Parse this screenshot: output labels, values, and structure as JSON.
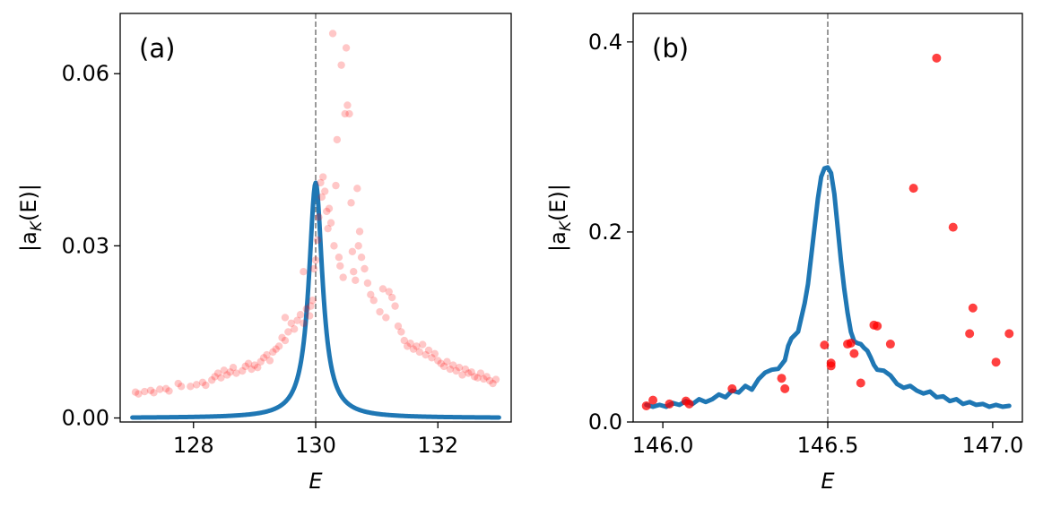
{
  "colors": {
    "curve": "#1f77b4",
    "points": "#ff0000",
    "vline": "#808080",
    "axes": "#000000"
  },
  "chart_data": [
    {
      "type": "scatter",
      "panel_label": "(a)",
      "xlabel": "E",
      "ylabel": "|a_K(E)|",
      "ylabel_main": "|a",
      "ylabel_sub": "K",
      "ylabel_tail": "(E)|",
      "xlim": [
        126.8,
        133.2
      ],
      "ylim": [
        -0.0007,
        0.0705
      ],
      "xticks": [
        128,
        130,
        132
      ],
      "xtick_labels": [
        "128",
        "130",
        "132"
      ],
      "yticks": [
        0.0,
        0.03,
        0.06
      ],
      "ytick_labels": [
        "0.00",
        "0.03",
        "0.06"
      ],
      "vline_x": 130,
      "point_alpha": 0.22,
      "series": [
        {
          "kind": "line",
          "lorentz": {
            "center": 130.0,
            "gamma": 0.135,
            "scale": 0.041,
            "x_range": [
              127.0,
              133.0
            ]
          }
        },
        {
          "kind": "scatter",
          "points": [
            [
              127.05,
              0.0045
            ],
            [
              127.1,
              0.0042
            ],
            [
              127.2,
              0.0046
            ],
            [
              127.3,
              0.0048
            ],
            [
              127.35,
              0.0044
            ],
            [
              127.45,
              0.005
            ],
            [
              127.55,
              0.0051
            ],
            [
              127.6,
              0.0047
            ],
            [
              127.75,
              0.006
            ],
            [
              127.8,
              0.0055
            ],
            [
              127.95,
              0.0055
            ],
            [
              128.05,
              0.0058
            ],
            [
              128.15,
              0.0062
            ],
            [
              128.2,
              0.0057
            ],
            [
              128.3,
              0.0066
            ],
            [
              128.35,
              0.0072
            ],
            [
              128.4,
              0.0078
            ],
            [
              128.45,
              0.007
            ],
            [
              128.5,
              0.0083
            ],
            [
              128.55,
              0.0075
            ],
            [
              128.6,
              0.008
            ],
            [
              128.65,
              0.0088
            ],
            [
              128.7,
              0.0078
            ],
            [
              128.8,
              0.0082
            ],
            [
              128.85,
              0.009
            ],
            [
              128.9,
              0.0095
            ],
            [
              128.95,
              0.0085
            ],
            [
              129.0,
              0.0092
            ],
            [
              129.05,
              0.0088
            ],
            [
              129.1,
              0.0098
            ],
            [
              129.15,
              0.0105
            ],
            [
              129.2,
              0.011
            ],
            [
              129.25,
              0.01
            ],
            [
              129.3,
              0.0115
            ],
            [
              129.35,
              0.012
            ],
            [
              129.4,
              0.0125
            ],
            [
              129.45,
              0.014
            ],
            [
              129.5,
              0.0135
            ],
            [
              129.5,
              0.0175
            ],
            [
              129.55,
              0.015
            ],
            [
              129.6,
              0.0165
            ],
            [
              129.65,
              0.0155
            ],
            [
              129.7,
              0.017
            ],
            [
              129.75,
              0.018
            ],
            [
              129.8,
              0.0165
            ],
            [
              129.8,
              0.0255
            ],
            [
              129.85,
              0.019
            ],
            [
              129.9,
              0.0178
            ],
            [
              129.92,
              0.0195
            ],
            [
              129.95,
              0.0205
            ],
            [
              129.97,
              0.026
            ],
            [
              130.0,
              0.0275
            ],
            [
              130.03,
              0.031
            ],
            [
              130.05,
              0.035
            ],
            [
              130.08,
              0.041
            ],
            [
              130.1,
              0.0385
            ],
            [
              130.12,
              0.042
            ],
            [
              130.15,
              0.0395
            ],
            [
              130.18,
              0.036
            ],
            [
              130.2,
              0.033
            ],
            [
              130.22,
              0.0365
            ],
            [
              130.25,
              0.034
            ],
            [
              130.28,
              0.067
            ],
            [
              130.3,
              0.03
            ],
            [
              130.33,
              0.0405
            ],
            [
              130.35,
              0.0485
            ],
            [
              130.38,
              0.028
            ],
            [
              130.4,
              0.0265
            ],
            [
              130.42,
              0.0615
            ],
            [
              130.45,
              0.0245
            ],
            [
              130.48,
              0.053
            ],
            [
              130.5,
              0.0645
            ],
            [
              130.52,
              0.0545
            ],
            [
              130.55,
              0.053
            ],
            [
              130.58,
              0.0375
            ],
            [
              130.6,
              0.029
            ],
            [
              130.62,
              0.0255
            ],
            [
              130.65,
              0.024
            ],
            [
              130.68,
              0.04
            ],
            [
              130.7,
              0.03
            ],
            [
              130.72,
              0.0325
            ],
            [
              130.75,
              0.028
            ],
            [
              130.8,
              0.026
            ],
            [
              130.85,
              0.0235
            ],
            [
              130.9,
              0.0215
            ],
            [
              130.95,
              0.0205
            ],
            [
              131.05,
              0.0185
            ],
            [
              131.1,
              0.0225
            ],
            [
              131.15,
              0.0175
            ],
            [
              131.2,
              0.022
            ],
            [
              131.25,
              0.021
            ],
            [
              131.3,
              0.0195
            ],
            [
              131.35,
              0.016
            ],
            [
              131.4,
              0.015
            ],
            [
              131.45,
              0.0135
            ],
            [
              131.5,
              0.0125
            ],
            [
              131.55,
              0.013
            ],
            [
              131.6,
              0.012
            ],
            [
              131.65,
              0.0125
            ],
            [
              131.7,
              0.0115
            ],
            [
              131.75,
              0.0128
            ],
            [
              131.8,
              0.011
            ],
            [
              131.85,
              0.0118
            ],
            [
              131.9,
              0.0105
            ],
            [
              131.95,
              0.0112
            ],
            [
              132.0,
              0.01
            ],
            [
              132.05,
              0.0095
            ],
            [
              132.1,
              0.009
            ],
            [
              132.15,
              0.0098
            ],
            [
              132.2,
              0.0085
            ],
            [
              132.25,
              0.0092
            ],
            [
              132.3,
              0.0082
            ],
            [
              132.35,
              0.0088
            ],
            [
              132.4,
              0.0075
            ],
            [
              132.45,
              0.0085
            ],
            [
              132.5,
              0.0078
            ],
            [
              132.55,
              0.008
            ],
            [
              132.6,
              0.0072
            ],
            [
              132.65,
              0.007
            ],
            [
              132.7,
              0.0078
            ],
            [
              132.75,
              0.0068
            ],
            [
              132.8,
              0.0072
            ],
            [
              132.85,
              0.0065
            ],
            [
              132.9,
              0.006
            ],
            [
              132.95,
              0.0067
            ]
          ]
        }
      ]
    },
    {
      "type": "scatter",
      "panel_label": "(b)",
      "xlabel": "E",
      "ylabel": "|a_K(E)|",
      "ylabel_main": "|a",
      "ylabel_sub": "K",
      "ylabel_tail": "(E)|",
      "xlim": [
        145.91,
        147.09
      ],
      "ylim": [
        0.0,
        0.43
      ],
      "xticks": [
        146.0,
        146.5,
        147.0
      ],
      "xtick_labels": [
        "146.0",
        "146.5",
        "147.0"
      ],
      "yticks": [
        0.0,
        0.2,
        0.4
      ],
      "ytick_labels": [
        "0.0",
        "0.2",
        "0.4"
      ],
      "vline_x": 146.5,
      "point_alpha": 0.75,
      "series": [
        {
          "kind": "line",
          "points": [
            [
              145.95,
              0.018
            ],
            [
              145.97,
              0.016
            ],
            [
              145.99,
              0.018
            ],
            [
              146.01,
              0.016
            ],
            [
              146.03,
              0.02
            ],
            [
              146.05,
              0.018
            ],
            [
              146.07,
              0.022
            ],
            [
              146.09,
              0.019
            ],
            [
              146.11,
              0.024
            ],
            [
              146.13,
              0.021
            ],
            [
              146.15,
              0.024
            ],
            [
              146.17,
              0.029
            ],
            [
              146.19,
              0.026
            ],
            [
              146.21,
              0.033
            ],
            [
              146.23,
              0.031
            ],
            [
              146.25,
              0.038
            ],
            [
              146.27,
              0.034
            ],
            [
              146.29,
              0.045
            ],
            [
              146.31,
              0.052
            ],
            [
              146.33,
              0.055
            ],
            [
              146.35,
              0.056
            ],
            [
              146.37,
              0.065
            ],
            [
              146.38,
              0.08
            ],
            [
              146.39,
              0.088
            ],
            [
              146.41,
              0.095
            ],
            [
              146.42,
              0.11
            ],
            [
              146.43,
              0.125
            ],
            [
              146.44,
              0.145
            ],
            [
              146.45,
              0.175
            ],
            [
              146.46,
              0.205
            ],
            [
              146.47,
              0.235
            ],
            [
              146.48,
              0.258
            ],
            [
              146.49,
              0.267
            ],
            [
              146.5,
              0.268
            ],
            [
              146.51,
              0.262
            ],
            [
              146.52,
              0.24
            ],
            [
              146.53,
              0.205
            ],
            [
              146.54,
              0.17
            ],
            [
              146.55,
              0.14
            ],
            [
              146.56,
              0.115
            ],
            [
              146.57,
              0.095
            ],
            [
              146.58,
              0.085
            ],
            [
              146.59,
              0.083
            ],
            [
              146.6,
              0.082
            ],
            [
              146.61,
              0.078
            ],
            [
              146.62,
              0.075
            ],
            [
              146.63,
              0.068
            ],
            [
              146.64,
              0.06
            ],
            [
              146.65,
              0.055
            ],
            [
              146.67,
              0.054
            ],
            [
              146.69,
              0.049
            ],
            [
              146.71,
              0.04
            ],
            [
              146.73,
              0.036
            ],
            [
              146.75,
              0.038
            ],
            [
              146.77,
              0.033
            ],
            [
              146.79,
              0.03
            ],
            [
              146.81,
              0.032
            ],
            [
              146.83,
              0.026
            ],
            [
              146.85,
              0.027
            ],
            [
              146.87,
              0.022
            ],
            [
              146.89,
              0.024
            ],
            [
              146.91,
              0.019
            ],
            [
              146.93,
              0.021
            ],
            [
              146.95,
              0.018
            ],
            [
              146.97,
              0.019
            ],
            [
              146.99,
              0.016
            ],
            [
              147.01,
              0.018
            ],
            [
              147.03,
              0.016
            ],
            [
              147.05,
              0.017
            ]
          ]
        },
        {
          "kind": "scatter",
          "points": [
            [
              145.95,
              0.017
            ],
            [
              145.97,
              0.023
            ],
            [
              146.02,
              0.019
            ],
            [
              146.07,
              0.022
            ],
            [
              146.08,
              0.019
            ],
            [
              146.21,
              0.035
            ],
            [
              146.36,
              0.046
            ],
            [
              146.37,
              0.035
            ],
            [
              146.49,
              0.081
            ],
            [
              146.51,
              0.062
            ],
            [
              146.51,
              0.059
            ],
            [
              146.56,
              0.082
            ],
            [
              146.57,
              0.083
            ],
            [
              146.58,
              0.072
            ],
            [
              146.6,
              0.041
            ],
            [
              146.64,
              0.102
            ],
            [
              146.65,
              0.101
            ],
            [
              146.69,
              0.082
            ],
            [
              146.76,
              0.246
            ],
            [
              146.83,
              0.383
            ],
            [
              146.88,
              0.205
            ],
            [
              146.93,
              0.093
            ],
            [
              146.94,
              0.12
            ],
            [
              147.01,
              0.063
            ],
            [
              147.05,
              0.093
            ]
          ]
        }
      ]
    }
  ]
}
